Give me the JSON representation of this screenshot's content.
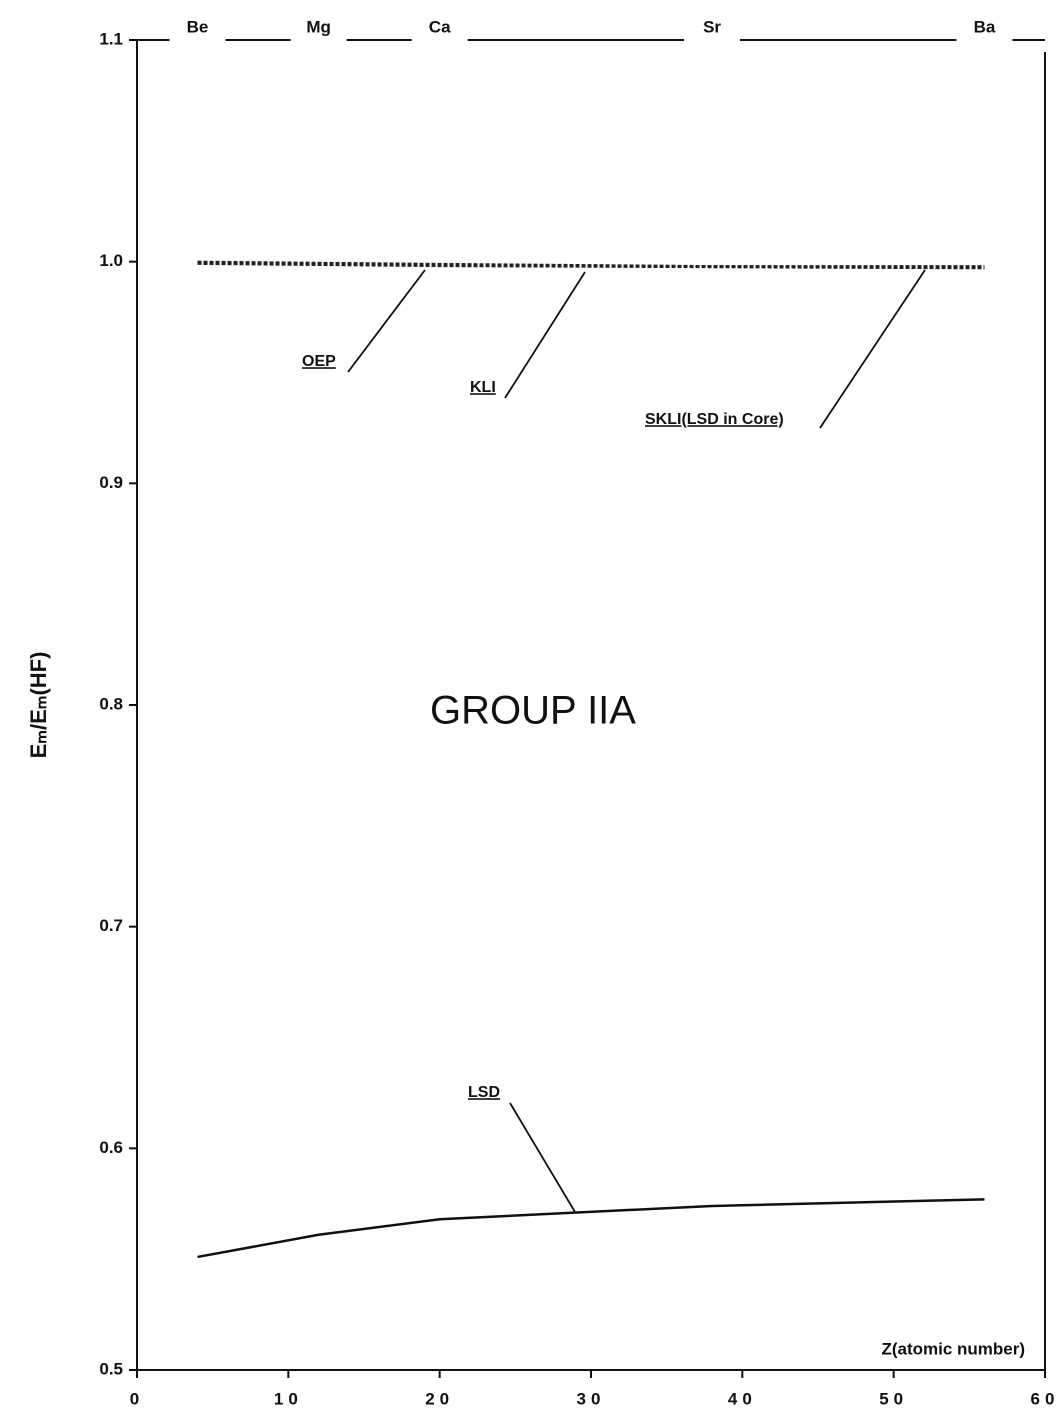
{
  "chart_data": {
    "type": "line",
    "y_label": "Eₘ/Eₘ(HF)",
    "x_label": "Z(atomic number)",
    "annotation": "GROUP IIA",
    "element_labels": [
      "Be",
      "Mg",
      "Ca",
      "Sr",
      "Ba"
    ],
    "x": [
      4,
      12,
      20,
      38,
      56
    ],
    "series": [
      {
        "name": "OEP",
        "color": "#222222",
        "values": [
          1.0,
          0.9995,
          0.999,
          0.998,
          0.998
        ]
      },
      {
        "name": "KLI",
        "color": "#222222",
        "values": [
          0.9995,
          0.999,
          0.9985,
          0.998,
          0.9975
        ]
      },
      {
        "name": "SKLI(LSD in Core)",
        "color": "#222222",
        "values": [
          0.999,
          0.9985,
          0.998,
          0.9975,
          0.997
        ]
      },
      {
        "name": "LSD",
        "color": "#111111",
        "values": [
          0.551,
          0.561,
          0.568,
          0.574,
          0.577
        ]
      }
    ],
    "xlim": [
      0,
      60
    ],
    "xticks": [
      0,
      10,
      20,
      30,
      40,
      50,
      60
    ],
    "ylim": [
      0.5,
      1.1
    ],
    "yticks": [
      0.5,
      0.6,
      0.7,
      0.8,
      0.9,
      {
        "value": 1,
        "label": "1.0"
      },
      1.1
    ]
  }
}
